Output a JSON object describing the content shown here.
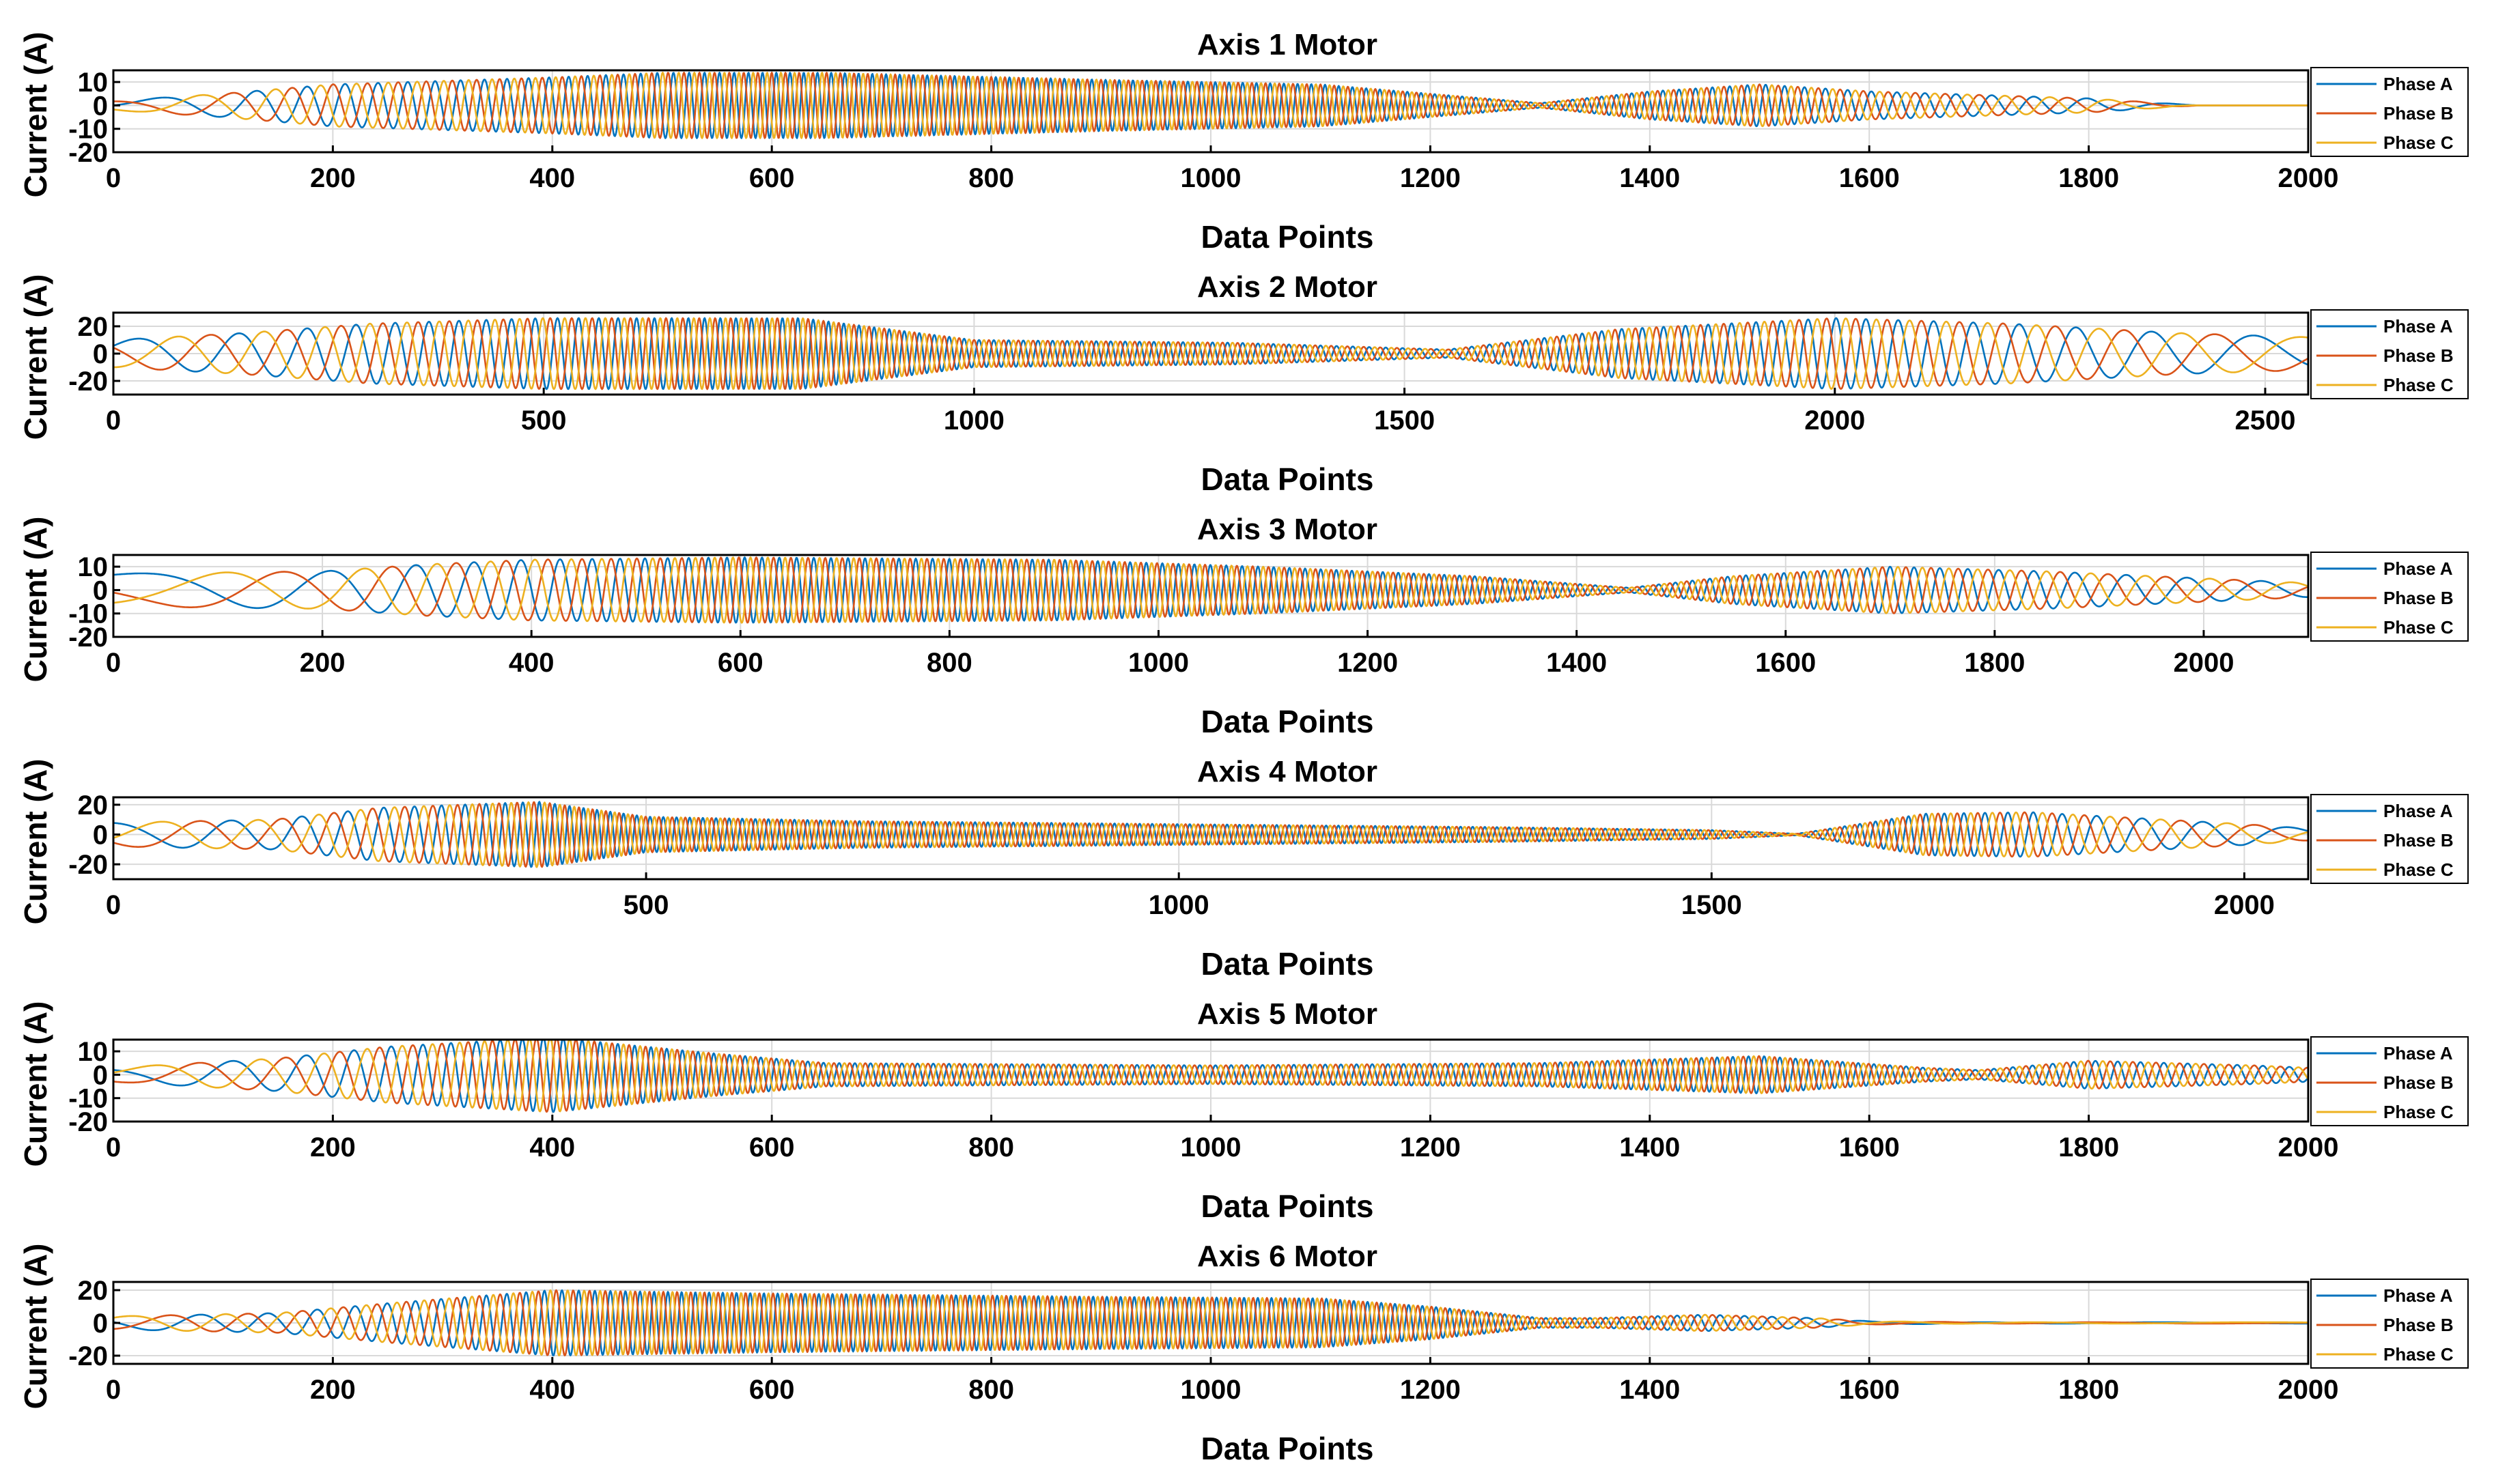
{
  "chart_data": [
    {
      "type": "line",
      "title": "Axis 1 Motor",
      "xlabel": "Data Points",
      "ylabel": "Current (A)",
      "xlim": [
        0,
        2000
      ],
      "ylim": [
        -20,
        15
      ],
      "xticks": [
        0,
        200,
        400,
        600,
        800,
        1000,
        1200,
        1400,
        1600,
        1800,
        2000
      ],
      "yticks": [
        -20,
        -10,
        0,
        10
      ],
      "grid": true,
      "legend": "right",
      "series": [
        {
          "name": "Phase A",
          "color": "#0072BD"
        },
        {
          "name": "Phase B",
          "color": "#D95319"
        },
        {
          "name": "Phase C",
          "color": "#EDB120"
        }
      ],
      "envelope": {
        "x": [
          0,
          100,
          200,
          400,
          500,
          650,
          900,
          1100,
          1300,
          1400,
          1500,
          1600,
          1800,
          1900,
          2000
        ],
        "amp": [
          2,
          5,
          9,
          12,
          14,
          14,
          11,
          9,
          1,
          6,
          9,
          6,
          3,
          0,
          0
        ]
      },
      "freq": {
        "x": [
          0,
          100,
          200,
          400,
          600,
          1300,
          1500,
          1700,
          1900,
          2000
        ],
        "f": [
          0.004,
          0.012,
          0.03,
          0.055,
          0.08,
          0.08,
          0.06,
          0.03,
          0.005,
          0.003
        ]
      }
    },
    {
      "type": "line",
      "title": "Axis 2 Motor",
      "xlabel": "Data Points",
      "ylabel": "Current (A)",
      "xlim": [
        0,
        2550
      ],
      "ylim": [
        -30,
        30
      ],
      "xticks": [
        0,
        500,
        1000,
        1500,
        2000,
        2500
      ],
      "yticks": [
        -20,
        0,
        20
      ],
      "grid": true,
      "legend": "right",
      "series": [
        {
          "name": "Phase A",
          "color": "#0072BD"
        },
        {
          "name": "Phase B",
          "color": "#D95319"
        },
        {
          "name": "Phase C",
          "color": "#EDB120"
        }
      ],
      "envelope": {
        "x": [
          0,
          150,
          300,
          500,
          800,
          1000,
          1300,
          1550,
          1750,
          2000,
          2200,
          2400,
          2550
        ],
        "amp": [
          10,
          15,
          22,
          26,
          26,
          10,
          8,
          3,
          18,
          26,
          22,
          15,
          12
        ]
      },
      "freq": {
        "x": [
          0,
          200,
          400,
          700,
          1200,
          1700,
          2000,
          2300,
          2550
        ],
        "f": [
          0.005,
          0.013,
          0.03,
          0.055,
          0.06,
          0.045,
          0.03,
          0.012,
          0.005
        ]
      }
    },
    {
      "type": "line",
      "title": "Axis 3 Motor",
      "xlabel": "Data Points",
      "ylabel": "Current (A)",
      "xlim": [
        0,
        2100
      ],
      "ylim": [
        -20,
        15
      ],
      "xticks": [
        0,
        200,
        400,
        600,
        800,
        1000,
        1200,
        1400,
        1600,
        1800,
        2000
      ],
      "yticks": [
        -20,
        -10,
        0,
        10
      ],
      "grid": true,
      "legend": "right",
      "series": [
        {
          "name": "Phase A",
          "color": "#0072BD"
        },
        {
          "name": "Phase B",
          "color": "#D95319"
        },
        {
          "name": "Phase C",
          "color": "#EDB120"
        }
      ],
      "envelope": {
        "x": [
          0,
          200,
          300,
          400,
          600,
          900,
          1100,
          1300,
          1450,
          1550,
          1700,
          1850,
          2000,
          2100
        ],
        "amp": [
          7,
          8,
          11,
          13,
          14,
          13,
          10,
          6,
          1,
          6,
          10,
          8,
          5,
          3
        ]
      },
      "freq": {
        "x": [
          0,
          200,
          400,
          600,
          1400,
          1700,
          1900,
          2100
        ],
        "f": [
          0.002,
          0.008,
          0.025,
          0.06,
          0.07,
          0.045,
          0.02,
          0.01
        ]
      }
    },
    {
      "type": "line",
      "title": "Axis 4 Motor",
      "xlabel": "Data Points",
      "ylabel": "Current (A)",
      "xlim": [
        0,
        2060
      ],
      "ylim": [
        -30,
        25
      ],
      "xticks": [
        0,
        500,
        1000,
        1500,
        2000
      ],
      "yticks": [
        -20,
        0,
        20
      ],
      "grid": true,
      "legend": "right",
      "series": [
        {
          "name": "Phase A",
          "color": "#0072BD"
        },
        {
          "name": "Phase B",
          "color": "#D95319"
        },
        {
          "name": "Phase C",
          "color": "#EDB120"
        }
      ],
      "envelope": {
        "x": [
          0,
          150,
          250,
          400,
          500,
          700,
          1000,
          1300,
          1500,
          1580,
          1700,
          1800,
          1900,
          2000,
          2060
        ],
        "amp": [
          8,
          10,
          18,
          22,
          12,
          9,
          7,
          5,
          3,
          0.5,
          14,
          15,
          11,
          7,
          4
        ]
      },
      "freq": {
        "x": [
          0,
          150,
          300,
          450,
          1500,
          1700,
          1900,
          2060
        ],
        "f": [
          0.005,
          0.015,
          0.04,
          0.08,
          0.09,
          0.06,
          0.02,
          0.008
        ]
      }
    },
    {
      "type": "line",
      "title": "Axis 5 Motor",
      "xlabel": "Data Points",
      "ylabel": "Current (A)",
      "xlim": [
        0,
        2000
      ],
      "ylim": [
        -20,
        15
      ],
      "xticks": [
        0,
        200,
        400,
        600,
        800,
        1000,
        1200,
        1400,
        1600,
        1800,
        2000
      ],
      "yticks": [
        -20,
        -10,
        0,
        10
      ],
      "grid": true,
      "legend": "right",
      "series": [
        {
          "name": "Phase A",
          "color": "#0072BD"
        },
        {
          "name": "Phase B",
          "color": "#D95319"
        },
        {
          "name": "Phase C",
          "color": "#EDB120"
        }
      ],
      "envelope": {
        "x": [
          0,
          150,
          250,
          400,
          550,
          650,
          1000,
          1300,
          1500,
          1650,
          1700,
          1800,
          1950,
          2000
        ],
        "amp": [
          3,
          7,
          12,
          16,
          9,
          5,
          4,
          5,
          8,
          3,
          2,
          6,
          4,
          3
        ]
      },
      "freq": {
        "x": [
          0,
          150,
          300,
          500,
          1600,
          1800,
          2000
        ],
        "f": [
          0.004,
          0.015,
          0.04,
          0.07,
          0.07,
          0.05,
          0.04
        ]
      }
    },
    {
      "type": "line",
      "title": "Axis 6 Motor",
      "xlabel": "Data Points",
      "ylabel": "Current (A)",
      "xlim": [
        0,
        2000
      ],
      "ylim": [
        -25,
        25
      ],
      "xticks": [
        0,
        200,
        400,
        600,
        800,
        1000,
        1200,
        1400,
        1600,
        1800,
        2000
      ],
      "yticks": [
        -20,
        0,
        20
      ],
      "grid": true,
      "legend": "right",
      "series": [
        {
          "name": "Phase A",
          "color": "#0072BD"
        },
        {
          "name": "Phase B",
          "color": "#D95319"
        },
        {
          "name": "Phase C",
          "color": "#EDB120"
        }
      ],
      "envelope": {
        "x": [
          0,
          150,
          250,
          400,
          600,
          900,
          1100,
          1200,
          1300,
          1350,
          1450,
          1550,
          1600,
          1700,
          2000
        ],
        "amp": [
          4,
          6,
          12,
          20,
          18,
          16,
          15,
          10,
          3,
          3,
          5,
          3,
          1,
          0.4,
          0.4
        ]
      },
      "freq": {
        "x": [
          0,
          150,
          300,
          500,
          1300,
          1500,
          1600,
          2000
        ],
        "f": [
          0.006,
          0.02,
          0.045,
          0.08,
          0.08,
          0.04,
          0.01,
          0.002
        ]
      }
    }
  ]
}
